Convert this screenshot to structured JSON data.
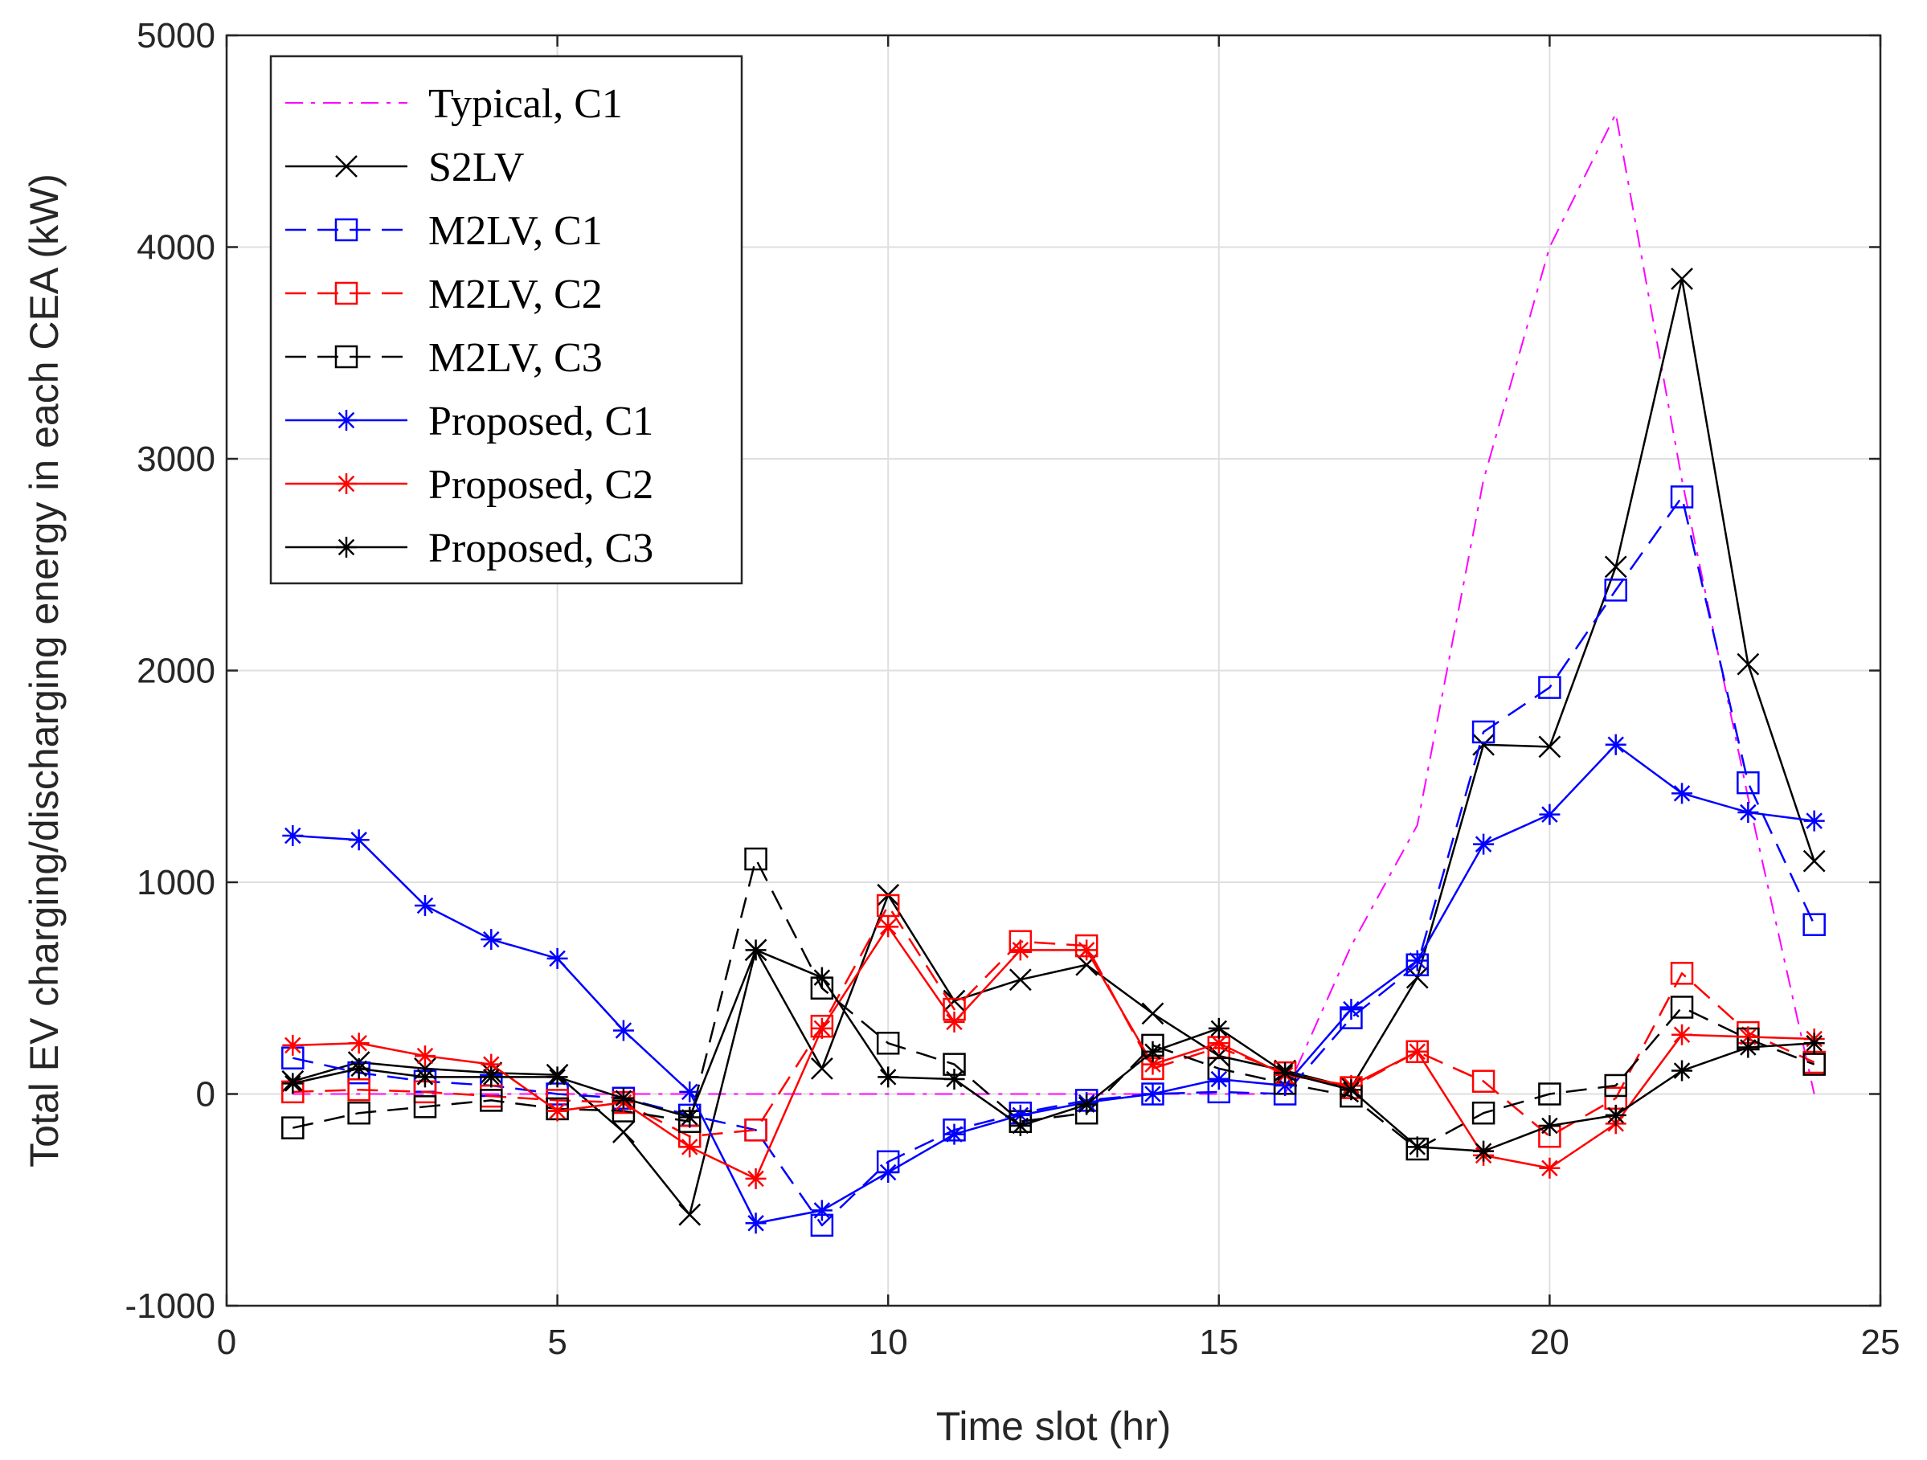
{
  "chart_data": {
    "type": "line",
    "title": "",
    "xlabel": "Time slot (hr)",
    "ylabel": "Total EV charging/discharging energy in each CEA (kW)",
    "xlim": [
      0,
      25
    ],
    "ylim": [
      -1000,
      5000
    ],
    "xticks": [
      0,
      5,
      10,
      15,
      20,
      25
    ],
    "yticks": [
      -1000,
      0,
      1000,
      2000,
      3000,
      4000,
      5000
    ],
    "grid": true,
    "legend_position": "top-left",
    "x": [
      1,
      2,
      3,
      4,
      5,
      6,
      7,
      8,
      9,
      10,
      11,
      12,
      13,
      14,
      15,
      16,
      17,
      18,
      19,
      20,
      21,
      22,
      23,
      24
    ],
    "series": [
      {
        "name": "Typical, C1",
        "color": "#ff00ff",
        "dash": "dashdot",
        "marker": "none",
        "values": [
          0,
          0,
          0,
          0,
          0,
          0,
          0,
          0,
          0,
          0,
          0,
          0,
          0,
          0,
          0,
          0,
          700,
          1270,
          2900,
          4000,
          4630,
          2900,
          1400,
          0
        ]
      },
      {
        "name": "S2LV",
        "color": "#000000",
        "dash": "solid",
        "marker": "x",
        "values": [
          60,
          150,
          120,
          100,
          90,
          -180,
          -570,
          680,
          120,
          940,
          440,
          540,
          610,
          380,
          180,
          110,
          30,
          550,
          1650,
          1640,
          2490,
          3850,
          2030,
          1100
        ]
      },
      {
        "name": "M2LV, C1",
        "color": "#0000ff",
        "dash": "dashed",
        "marker": "square",
        "values": [
          170,
          100,
          60,
          40,
          0,
          -20,
          -100,
          -170,
          -620,
          -320,
          -170,
          -90,
          -30,
          0,
          10,
          0,
          360,
          610,
          1710,
          1920,
          2380,
          2820,
          1470,
          800
        ]
      },
      {
        "name": "M2LV, C2",
        "color": "#ff0000",
        "dash": "dashed",
        "marker": "square",
        "values": [
          10,
          20,
          10,
          -10,
          -30,
          -40,
          -200,
          -170,
          320,
          890,
          400,
          720,
          700,
          120,
          220,
          100,
          30,
          200,
          60,
          -200,
          -20,
          570,
          290,
          150
        ]
      },
      {
        "name": "M2LV, C3",
        "color": "#000000",
        "dash": "dashed",
        "marker": "square",
        "values": [
          -160,
          -90,
          -60,
          -30,
          -70,
          -80,
          -130,
          1110,
          500,
          240,
          140,
          -130,
          -90,
          230,
          120,
          50,
          -10,
          -260,
          -90,
          0,
          40,
          410,
          260,
          140
        ]
      },
      {
        "name": "Proposed, C1",
        "color": "#0000ff",
        "dash": "solid",
        "marker": "asterisk",
        "values": [
          1220,
          1200,
          890,
          730,
          640,
          300,
          10,
          -610,
          -550,
          -370,
          -190,
          -100,
          -40,
          0,
          70,
          40,
          400,
          630,
          1180,
          1320,
          1650,
          1420,
          1330,
          1290
        ]
      },
      {
        "name": "Proposed, C2",
        "color": "#ff0000",
        "dash": "solid",
        "marker": "asterisk",
        "values": [
          230,
          240,
          180,
          140,
          -80,
          -40,
          -250,
          -400,
          310,
          790,
          340,
          680,
          680,
          140,
          240,
          90,
          40,
          200,
          -290,
          -350,
          -140,
          280,
          270,
          260
        ]
      },
      {
        "name": "Proposed, C3",
        "color": "#000000",
        "dash": "solid",
        "marker": "asterisk",
        "values": [
          50,
          120,
          80,
          80,
          80,
          -20,
          -110,
          680,
          550,
          80,
          70,
          -150,
          -50,
          200,
          310,
          100,
          20,
          -250,
          -270,
          -150,
          -100,
          110,
          220,
          240
        ]
      }
    ]
  }
}
